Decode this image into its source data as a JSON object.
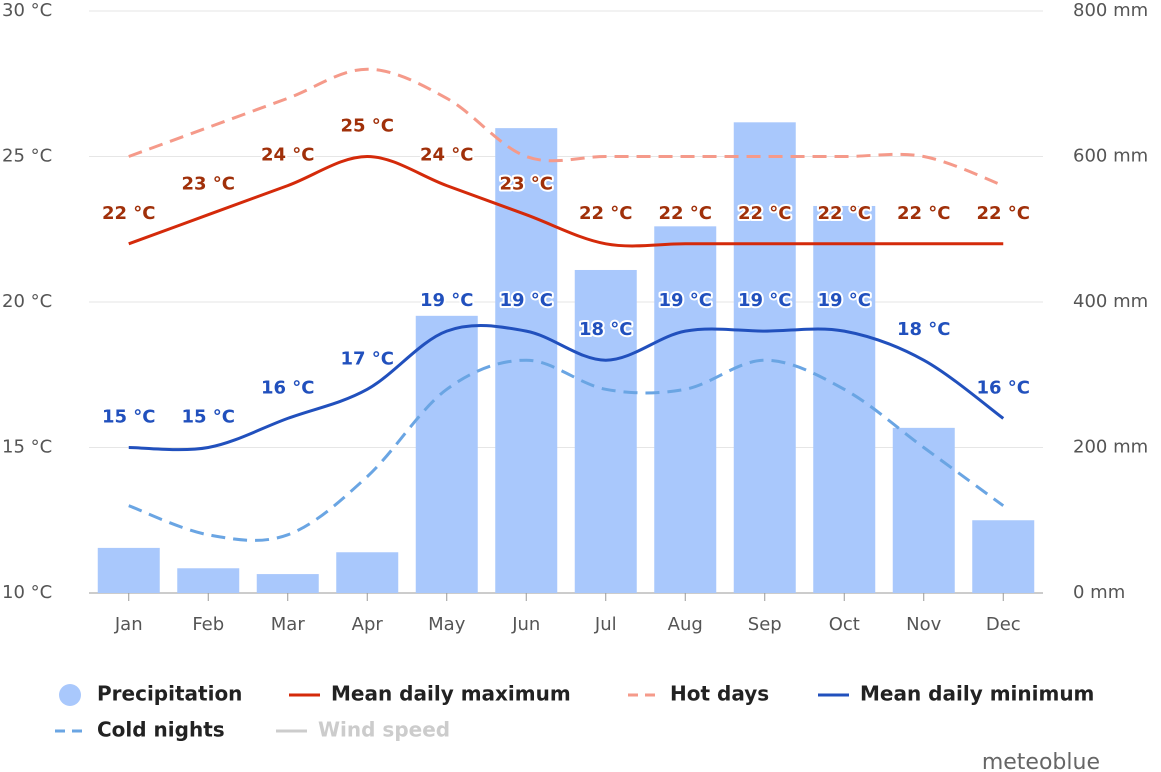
{
  "chart_data": {
    "type": "bar-line",
    "categories": [
      "Jan",
      "Feb",
      "Mar",
      "Apr",
      "May",
      "Jun",
      "Jul",
      "Aug",
      "Sep",
      "Oct",
      "Nov",
      "Dec"
    ],
    "ylim": [
      10,
      30
    ],
    "yticks": [
      {
        "value": 10,
        "label": "10 °C"
      },
      {
        "value": 15,
        "label": "15 °C"
      },
      {
        "value": 20,
        "label": "20 °C"
      },
      {
        "value": 25,
        "label": "25 °C"
      },
      {
        "value": 30,
        "label": "30 °C"
      }
    ],
    "y2lim": [
      0,
      800
    ],
    "y2ticks": [
      {
        "value": 0,
        "label": "0 mm"
      },
      {
        "value": 200,
        "label": "200 mm"
      },
      {
        "value": 400,
        "label": "400 mm"
      },
      {
        "value": 600,
        "label": "600 mm"
      },
      {
        "value": 800,
        "label": "800 mm"
      }
    ],
    "grid": true,
    "series": [
      {
        "name": "Precipitation",
        "type": "bar",
        "axis": "y2",
        "color": "#a9c8fc",
        "values": [
          62,
          34,
          26,
          56,
          381,
          639,
          444,
          504,
          647,
          532,
          227,
          100
        ]
      },
      {
        "name": "Mean daily maximum",
        "type": "line",
        "color": "#d42a0a",
        "values": [
          22,
          23,
          24,
          25,
          24,
          23,
          22,
          22,
          22,
          22,
          22,
          22
        ],
        "value_labels": [
          "22 °C",
          "23 °C",
          "24 °C",
          "25 °C",
          "24 °C",
          "23 °C",
          "22 °C",
          "22 °C",
          "22 °C",
          "22 °C",
          "22 °C",
          "22 °C"
        ],
        "label_color": "#a0300a"
      },
      {
        "name": "Hot days",
        "type": "line",
        "dashed": true,
        "color": "#f59a8a",
        "values": [
          25,
          26,
          27,
          28,
          27,
          25,
          25,
          25,
          25,
          25,
          25,
          24
        ]
      },
      {
        "name": "Mean daily minimum",
        "type": "line",
        "color": "#2150bd",
        "values": [
          15,
          15,
          16,
          17,
          19,
          19,
          18,
          19,
          19,
          19,
          18,
          16
        ],
        "value_labels": [
          "15 °C",
          "15 °C",
          "16 °C",
          "17 °C",
          "19 °C",
          "19 °C",
          "18 °C",
          "19 °C",
          "19 °C",
          "19 °C",
          "18 °C",
          "16 °C"
        ],
        "label_color": "#2150bd"
      },
      {
        "name": "Cold nights",
        "type": "line",
        "dashed": true,
        "color": "#6aa5e3",
        "values": [
          13,
          12,
          12,
          14,
          17,
          18,
          17,
          17,
          18,
          17,
          15,
          13
        ]
      },
      {
        "name": "Wind speed",
        "type": "line",
        "visible": false,
        "color": "#cccccc"
      }
    ],
    "credit": "meteoblue"
  }
}
